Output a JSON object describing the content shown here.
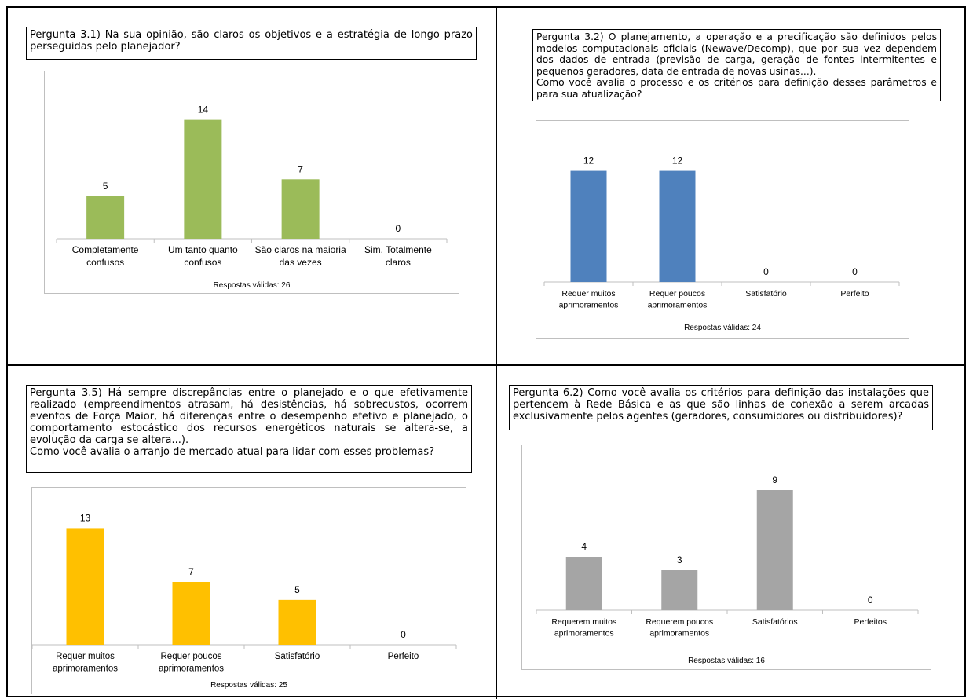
{
  "chart_data": [
    {
      "type": "bar",
      "question": "Pergunta 3.1) Na sua opinião, são claros os objetivos e a estratégia de longo prazo perseguidas pelo planejador?",
      "categories": [
        [
          "Completamente",
          "confusos"
        ],
        [
          "Um tanto quanto",
          "confusos"
        ],
        [
          "São claros na maioria",
          "das vezes"
        ],
        [
          "Sim. Totalmente",
          "claros"
        ]
      ],
      "values": [
        5,
        14,
        7,
        0
      ],
      "color": "#9bbb59",
      "footer": "Respostas válidas: 26",
      "ylim": [
        0,
        16
      ]
    },
    {
      "type": "bar",
      "question": "Pergunta 3.2) O planejamento, a operação e a precificação são definidos pelos modelos computacionais oficiais (Newave/Decomp), que por sua vez dependem dos dados de entrada (previsão de carga, geração de fontes intermitentes e pequenos geradores, data de entrada de novas usinas...).\nComo você avalia o processo e os critérios para definição desses parâmetros e para sua atualização?",
      "categories": [
        [
          "Requer muitos",
          "aprimoramentos"
        ],
        [
          "Requer poucos",
          "aprimoramentos"
        ],
        [
          "Satisfatório"
        ],
        [
          "Perfeito"
        ]
      ],
      "values": [
        12,
        12,
        0,
        0
      ],
      "color": "#4f81bd",
      "footer": "Respostas válidas: 24",
      "ylim": [
        0,
        14
      ]
    },
    {
      "type": "bar",
      "question": "Pergunta 3.5) Há sempre discrepâncias entre o planejado e o que efetivamente realizado (empreendimentos atrasam, há desistências, há sobrecustos, ocorrem eventos de Força Maior, há diferenças entre o desempenho efetivo e planejado, o comportamento estocástico dos recursos energéticos naturais se altera-se, a evolução da carga se altera...).\nComo você avalia o arranjo de mercado atual para lidar com esses problemas?",
      "categories": [
        [
          "Requer muitos",
          "aprimoramentos"
        ],
        [
          "Requer poucos",
          "aprimoramentos"
        ],
        [
          "Satisfatório"
        ],
        [
          "Perfeito"
        ]
      ],
      "values": [
        13,
        7,
        5,
        0
      ],
      "color": "#ffc000",
      "footer": "Respostas válidas: 25",
      "ylim": [
        0,
        14
      ]
    },
    {
      "type": "bar",
      "question": "Pergunta 6.2) Como você avalia os critérios para definição das instalações que pertencem à Rede Básica e as que são linhas de conexão a serem arcadas exclusivamente pelos agentes (geradores, consumidores ou distribuidores)?",
      "categories": [
        [
          "Requerem muitos",
          "aprimoramentos"
        ],
        [
          "Requerem poucos",
          "aprimoramentos"
        ],
        [
          "Satisfatórios"
        ],
        [
          "Perfeitos"
        ]
      ],
      "values": [
        4,
        3,
        9,
        0
      ],
      "color": "#a5a5a5",
      "footer": "Respostas válidas: 16",
      "ylim": [
        0,
        10
      ]
    }
  ]
}
